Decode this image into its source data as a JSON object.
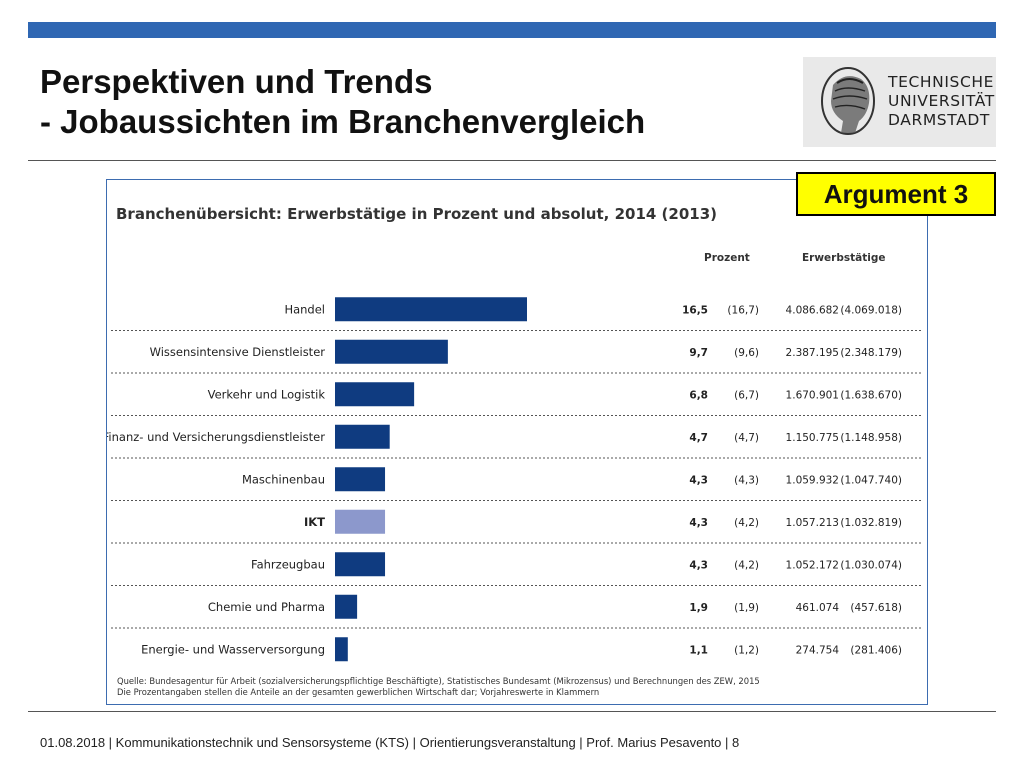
{
  "slide": {
    "title_line1": "Perspektiven und Trends",
    "title_line2": "- Jobaussichten im Branchenvergleich",
    "badge": "Argument 3",
    "logo_lines": [
      "TECHNISCHE",
      "UNIVERSITÄT",
      "DARMSTADT"
    ],
    "footer": "01.08.2018  |  Kommunikationstechnik und Sensorsysteme (KTS) | Orientierungsveranstaltung |  Prof. Marius Pesavento  |  8"
  },
  "colors": {
    "bar": "#0f3b80",
    "bar_highlight": "#8c98cc",
    "top_bar": "#2f67b3"
  },
  "chart_data": {
    "type": "bar",
    "orientation": "horizontal",
    "title": "Branchenübersicht: Erwerbstätige  in Prozent und absolut, 2014 (2013)",
    "column_headers": {
      "percent": "Prozent",
      "employed": "Erwerbstätige"
    },
    "categories": [
      "Handel",
      "Wissensintensive Dienstleister",
      "Verkehr und Logistik",
      "Finanz- und Versicherungsdienstleister",
      "Maschinenbau",
      "IKT",
      "Fahrzeugbau",
      "Chemie und Pharma",
      "Energie- und Wasserversorgung"
    ],
    "highlight_category": "IKT",
    "series": [
      {
        "values": [
          16.5,
          9.7,
          6.8,
          4.7,
          4.3,
          4.3,
          4.3,
          1.9,
          1.1
        ]
      }
    ],
    "percent_2014": [
      "16,5",
      "9,7",
      "6,8",
      "4,7",
      "4,3",
      "4,3",
      "4,3",
      "1,9",
      "1,1"
    ],
    "percent_2013": [
      "(16,7)",
      "(9,6)",
      "(6,7)",
      "(4,7)",
      "(4,3)",
      "(4,2)",
      "(4,2)",
      "(1,9)",
      "(1,2)"
    ],
    "employed_2014": [
      "4.086.682",
      "2.387.195",
      "1.670.901",
      "1.150.775",
      "1.059.932",
      "1.057.213",
      "1.052.172",
      "461.074",
      "274.754"
    ],
    "employed_2013": [
      "(4.069.018)",
      "(2.348.179)",
      "(1.638.670)",
      "(1.148.958)",
      "(1.047.740)",
      "(1.032.819)",
      "(1.030.074)",
      "(457.618)",
      "(281.406)"
    ],
    "xlim": [
      0,
      16.5
    ],
    "grid": false,
    "source_line1": "Quelle: Bundesagentur für Arbeit (sozialversicherungspflichtige Beschäftigte), Statistisches Bundesamt (Mikrozensus) und Berechnungen des ZEW, 2015",
    "source_line2": "Die Prozentangaben stellen die Anteile an der gesamten gewerblichen Wirtschaft dar; Vorjahreswerte in Klammern"
  }
}
